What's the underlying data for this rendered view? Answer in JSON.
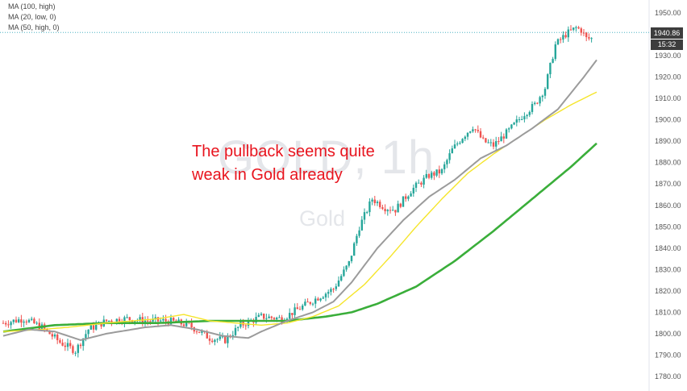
{
  "legend": {
    "ma100": "MA (100, high)",
    "ma20": "MA (20, low, 0)",
    "ma50": "MA (50, high, 0)"
  },
  "watermark": {
    "symbol": "GOLD, 1h",
    "name": "Gold"
  },
  "annotation": {
    "line1": "The pullback seems quite",
    "line2": "weak in Gold already"
  },
  "last_price": {
    "value": "1940.86",
    "countdown": "15:32"
  },
  "colors": {
    "up": "#26a69a",
    "down": "#ef5350",
    "ma_green": "#3aae3a",
    "ma_yellow": "#f5e52a",
    "ma_gray": "#9b9b9b",
    "annotation": "#e8141e",
    "price_line": "#4cb2c4"
  },
  "chart_data": {
    "type": "line",
    "x_count": 240,
    "ylim": [
      1775,
      1955
    ],
    "y_ticks": [
      1780,
      1790,
      1800,
      1810,
      1820,
      1830,
      1840,
      1850,
      1860,
      1870,
      1880,
      1890,
      1900,
      1910,
      1920,
      1930,
      1950
    ],
    "price_line_value": 1940.86,
    "series": [
      {
        "name": "MA (100, high)",
        "color": "#3aae3a",
        "points": [
          [
            0,
            1801
          ],
          [
            20,
            1804
          ],
          [
            40,
            1805
          ],
          [
            60,
            1805
          ],
          [
            80,
            1806
          ],
          [
            100,
            1806
          ],
          [
            110,
            1806
          ],
          [
            125,
            1808
          ],
          [
            135,
            1810
          ],
          [
            145,
            1814
          ],
          [
            160,
            1822
          ],
          [
            175,
            1834
          ],
          [
            190,
            1848
          ],
          [
            205,
            1863
          ],
          [
            220,
            1878
          ],
          [
            230,
            1889
          ]
        ]
      },
      {
        "name": "MA (50, high, 0)",
        "color": "#f5e52a",
        "points": [
          [
            0,
            1801
          ],
          [
            15,
            1802
          ],
          [
            25,
            1803
          ],
          [
            40,
            1805
          ],
          [
            60,
            1807
          ],
          [
            70,
            1809
          ],
          [
            80,
            1806
          ],
          [
            100,
            1804
          ],
          [
            110,
            1805
          ],
          [
            120,
            1808
          ],
          [
            130,
            1813
          ],
          [
            140,
            1823
          ],
          [
            150,
            1836
          ],
          [
            160,
            1850
          ],
          [
            170,
            1863
          ],
          [
            180,
            1875
          ],
          [
            190,
            1884
          ],
          [
            200,
            1892
          ],
          [
            210,
            1900
          ],
          [
            220,
            1907
          ],
          [
            230,
            1913
          ]
        ]
      },
      {
        "name": "MA (20, low, 0)",
        "color": "#9b9b9b",
        "points": [
          [
            0,
            1799
          ],
          [
            10,
            1802
          ],
          [
            20,
            1801
          ],
          [
            30,
            1797
          ],
          [
            40,
            1800
          ],
          [
            55,
            1803
          ],
          [
            65,
            1804
          ],
          [
            75,
            1802
          ],
          [
            85,
            1799
          ],
          [
            95,
            1798
          ],
          [
            100,
            1801
          ],
          [
            110,
            1806
          ],
          [
            120,
            1810
          ],
          [
            128,
            1815
          ],
          [
            135,
            1824
          ],
          [
            145,
            1840
          ],
          [
            155,
            1853
          ],
          [
            165,
            1864
          ],
          [
            175,
            1872
          ],
          [
            185,
            1882
          ],
          [
            195,
            1888
          ],
          [
            205,
            1896
          ],
          [
            215,
            1905
          ],
          [
            225,
            1920
          ],
          [
            230,
            1928
          ]
        ]
      },
      {
        "name": "Price",
        "color": "#26a69a",
        "points": [
          [
            0,
            1805
          ],
          [
            8,
            1807
          ],
          [
            15,
            1803
          ],
          [
            22,
            1796
          ],
          [
            28,
            1792
          ],
          [
            33,
            1802
          ],
          [
            40,
            1806
          ],
          [
            48,
            1807
          ],
          [
            56,
            1806
          ],
          [
            64,
            1806
          ],
          [
            72,
            1804
          ],
          [
            80,
            1798
          ],
          [
            86,
            1797
          ],
          [
            92,
            1804
          ],
          [
            100,
            1808
          ],
          [
            108,
            1807
          ],
          [
            115,
            1812
          ],
          [
            122,
            1817
          ],
          [
            128,
            1821
          ],
          [
            134,
            1833
          ],
          [
            138,
            1850
          ],
          [
            143,
            1863
          ],
          [
            148,
            1859
          ],
          [
            152,
            1858
          ],
          [
            158,
            1867
          ],
          [
            165,
            1874
          ],
          [
            170,
            1876
          ],
          [
            174,
            1886
          ],
          [
            178,
            1892
          ],
          [
            182,
            1897
          ],
          [
            186,
            1890
          ],
          [
            190,
            1888
          ],
          [
            196,
            1895
          ],
          [
            202,
            1903
          ],
          [
            206,
            1907
          ],
          [
            210,
            1915
          ],
          [
            214,
            1935
          ],
          [
            218,
            1940
          ],
          [
            222,
            1943
          ],
          [
            224,
            1942
          ],
          [
            226,
            1938
          ],
          [
            228,
            1938
          ]
        ]
      }
    ]
  }
}
